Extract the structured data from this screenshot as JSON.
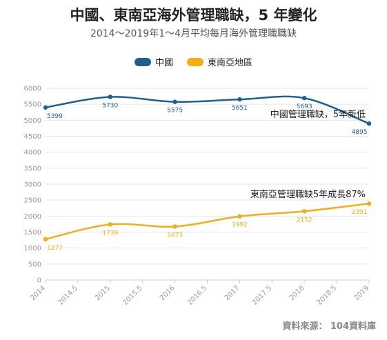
{
  "title": "中國、東南亞海外管理職缺，5 年變化",
  "subtitle": "2014～2019年1～4月平均每月海外管理職職缺",
  "source": "資料來源： 104資料庫",
  "colors": {
    "china": "#1b6090",
    "sea": "#f2ae12",
    "grid": "#e6e6e6",
    "axis": "#cccccc"
  },
  "chart_data": {
    "type": "line",
    "title": "中國、東南亞海外管理職缺，5 年變化",
    "subtitle": "2014～2019年1～4月平均每月海外管理職職缺",
    "xlim": [
      2014,
      2019
    ],
    "ylim": [
      0,
      6000
    ],
    "x_ticks": [
      "2014",
      "2014.5",
      "2015",
      "2015.5",
      "2016",
      "2016.5",
      "2017",
      "2017.5",
      "2018",
      "2018.5",
      "2019"
    ],
    "y_ticks": [
      "0",
      "500",
      "1000",
      "1500",
      "2000",
      "2500",
      "3000",
      "3500",
      "4000",
      "4500",
      "5000",
      "5500",
      "6000"
    ],
    "grid": true,
    "legend_position": "top-center",
    "x": [
      2014,
      2015,
      2016,
      2017,
      2018,
      2019
    ],
    "series": [
      {
        "name": "中國",
        "values": [
          5399,
          5730,
          5575,
          5651,
          5693,
          4895
        ]
      },
      {
        "name": "東南亞地區",
        "values": [
          1277,
          1739,
          1673,
          1992,
          2152,
          2391
        ]
      }
    ],
    "annotations": [
      "中國管理職缺，5年新低",
      "東南亞管理職缺5年成長87%"
    ]
  }
}
